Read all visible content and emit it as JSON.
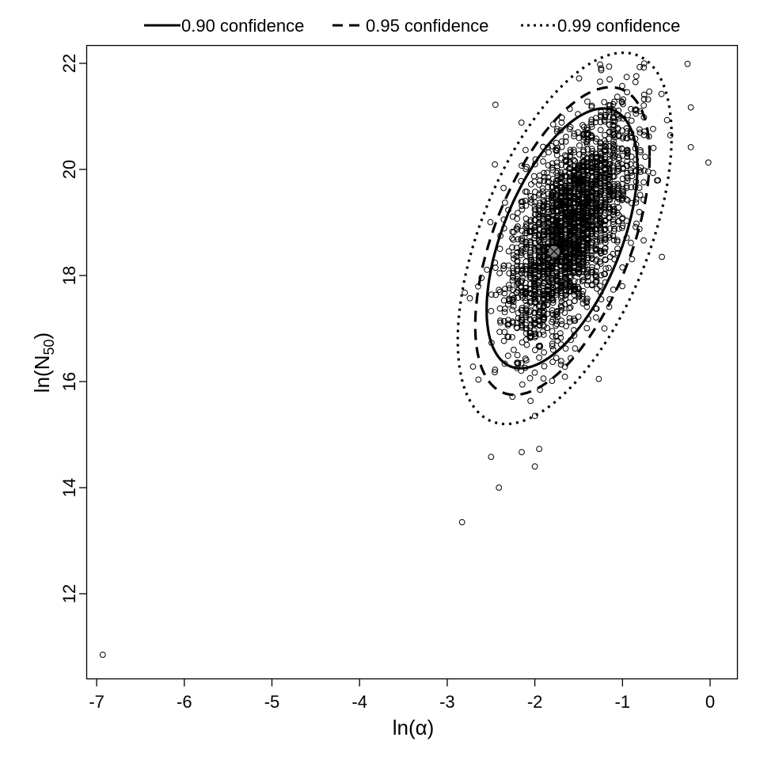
{
  "chart_data": {
    "type": "scatter",
    "title": "",
    "xlabel": "ln(α)",
    "ylabel": "ln(N50)",
    "ylabel_main": "ln(N",
    "ylabel_sub": "50",
    "ylabel_close": ")",
    "xlim": [
      -7.1,
      0.3
    ],
    "ylim": [
      10.6,
      22.4
    ],
    "x_ticks": [
      -7,
      -6,
      -5,
      -4,
      -3,
      -2,
      -1,
      0
    ],
    "x_tick_labels": [
      "-7",
      "-6",
      "-5",
      "-4",
      "-3",
      "-2",
      "-1",
      "0"
    ],
    "y_ticks": [
      12,
      14,
      16,
      18,
      20,
      22
    ],
    "y_tick_labels": [
      "12",
      "14",
      "16",
      "18",
      "20",
      "22"
    ],
    "grid": false,
    "legend_position": "top-outside",
    "legend": [
      {
        "label": "0.90 confidence",
        "style": "solid"
      },
      {
        "label": "0.95 confidence",
        "style": "dashed"
      },
      {
        "label": "0.99 confidence",
        "style": "dotted"
      }
    ],
    "point_estimate": {
      "x": -1.78,
      "y": 18.45,
      "color": "#808080"
    },
    "confidence_regions": [
      {
        "level": 0.9,
        "style": "solid",
        "center": [
          -1.69,
          18.7
        ],
        "x_range": [
          -2.55,
          -0.83
        ],
        "y_range": [
          16.25,
          21.15
        ],
        "tilt": 0.55
      },
      {
        "level": 0.95,
        "style": "dashed",
        "center": [
          -1.69,
          18.7
        ],
        "x_range": [
          -2.68,
          -0.69
        ],
        "y_range": [
          15.75,
          21.55
        ],
        "tilt": 0.55
      },
      {
        "level": 0.99,
        "style": "dotted",
        "center": [
          -1.69,
          18.7
        ],
        "x_range": [
          -2.88,
          -0.44
        ],
        "y_range": [
          15.2,
          22.2
        ],
        "tilt": 0.55
      }
    ],
    "scatter_cloud": {
      "description": "bootstrap parameter estimates, open circles, dense positively-correlated cloud",
      "n_points": 2500,
      "mean": [
        -1.6,
        18.9
      ],
      "sd": [
        0.35,
        1.05
      ],
      "correlation": 0.6
    },
    "outliers": [
      {
        "x": -6.93,
        "y": 10.85
      },
      {
        "x": -2.83,
        "y": 13.35
      },
      {
        "x": -2.41,
        "y": 14.0
      },
      {
        "x": -2.5,
        "y": 14.58
      },
      {
        "x": -2.0,
        "y": 14.4
      },
      {
        "x": -1.95,
        "y": 14.73
      },
      {
        "x": -2.15,
        "y": 14.67
      },
      {
        "x": -0.02,
        "y": 20.13
      },
      {
        "x": -0.22,
        "y": 20.42
      },
      {
        "x": -0.22,
        "y": 21.17
      },
      {
        "x": -2.45,
        "y": 21.22
      },
      {
        "x": -1.27,
        "y": 16.05
      },
      {
        "x": -0.55,
        "y": 18.35
      }
    ]
  }
}
